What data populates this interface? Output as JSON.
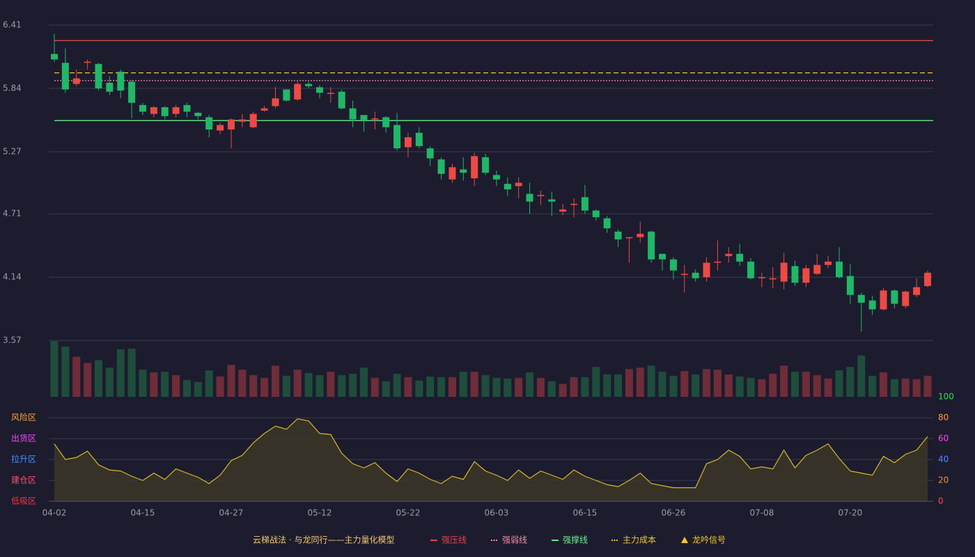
{
  "chart_data": {
    "type": "candlestick",
    "categories": [
      "04-02",
      null,
      null,
      null,
      null,
      null,
      null,
      null,
      "04-15",
      null,
      null,
      null,
      null,
      null,
      null,
      null,
      "04-27",
      null,
      null,
      null,
      null,
      null,
      null,
      null,
      "05-12",
      null,
      null,
      null,
      null,
      null,
      null,
      null,
      "05-22",
      null,
      null,
      null,
      null,
      null,
      null,
      null,
      "06-03",
      null,
      null,
      null,
      null,
      null,
      null,
      null,
      "06-15",
      null,
      null,
      null,
      null,
      null,
      null,
      null,
      "06-26",
      null,
      null,
      null,
      null,
      null,
      null,
      null,
      "07-08",
      null,
      null,
      null,
      null,
      null,
      null,
      null,
      "07-20",
      null,
      null,
      null,
      null,
      null,
      null,
      null
    ],
    "open": [
      6.15,
      6.07,
      5.88,
      6.07,
      6.06,
      5.89,
      5.99,
      5.9,
      5.69,
      5.61,
      5.67,
      5.61,
      5.69,
      5.62,
      5.58,
      5.46,
      5.47,
      5.54,
      5.49,
      5.64,
      5.68,
      5.83,
      5.74,
      5.88,
      5.85,
      5.79,
      5.81,
      5.66,
      5.6,
      5.56,
      5.58,
      5.51,
      5.31,
      5.44,
      5.3,
      5.2,
      5.02,
      5.11,
      5.03,
      5.22,
      5.06,
      4.98,
      4.96,
      4.89,
      4.87,
      4.84,
      4.73,
      4.79,
      4.86,
      4.74,
      4.67,
      4.55,
      4.49,
      4.5,
      4.55,
      4.35,
      4.3,
      4.16,
      4.18,
      4.14,
      4.27,
      4.33,
      4.35,
      4.28,
      4.13,
      4.12,
      4.1,
      4.24,
      4.09,
      4.17,
      4.25,
      4.28,
      4.15,
      3.98,
      3.93,
      3.85,
      4.02,
      3.88,
      3.98,
      4.06
    ],
    "high": [
      6.33,
      6.2,
      6.01,
      6.1,
      6.07,
      5.95,
      6.01,
      5.91,
      5.71,
      5.68,
      5.68,
      5.69,
      5.71,
      5.63,
      5.6,
      5.53,
      5.57,
      5.61,
      5.63,
      5.68,
      5.85,
      5.83,
      5.9,
      5.9,
      5.87,
      5.85,
      5.83,
      5.73,
      5.6,
      5.63,
      5.59,
      5.62,
      5.44,
      5.49,
      5.32,
      5.22,
      5.16,
      5.22,
      5.26,
      5.25,
      5.1,
      5.04,
      5.04,
      4.99,
      4.92,
      4.91,
      4.8,
      4.85,
      4.97,
      4.75,
      4.69,
      4.57,
      4.5,
      4.64,
      4.56,
      4.35,
      4.32,
      4.25,
      4.21,
      4.32,
      4.47,
      4.41,
      4.44,
      4.31,
      4.18,
      4.23,
      4.36,
      4.29,
      4.25,
      4.35,
      4.33,
      4.41,
      4.26,
      4.0,
      3.97,
      4.04,
      4.03,
      4.02,
      4.13,
      4.2
    ],
    "low": [
      6.08,
      5.8,
      5.86,
      6.01,
      5.82,
      5.78,
      5.75,
      5.57,
      5.6,
      5.58,
      5.56,
      5.58,
      5.58,
      5.56,
      5.4,
      5.43,
      5.3,
      5.49,
      5.48,
      5.63,
      5.66,
      5.72,
      5.73,
      5.84,
      5.75,
      5.71,
      5.65,
      5.49,
      5.45,
      5.47,
      5.44,
      5.28,
      5.22,
      5.3,
      5.14,
      5.02,
      4.99,
      5.01,
      4.96,
      5.06,
      4.96,
      4.87,
      4.85,
      4.71,
      4.79,
      4.69,
      4.7,
      4.68,
      4.71,
      4.65,
      4.54,
      4.41,
      4.27,
      4.45,
      4.27,
      4.2,
      4.12,
      4.0,
      4.1,
      4.1,
      4.2,
      4.27,
      4.24,
      4.12,
      4.05,
      4.04,
      4.03,
      4.06,
      4.05,
      4.16,
      4.22,
      4.13,
      3.9,
      3.65,
      3.8,
      3.84,
      3.86,
      3.86,
      3.96,
      4.05
    ],
    "close": [
      6.1,
      5.83,
      5.93,
      6.08,
      5.84,
      5.81,
      5.82,
      5.71,
      5.63,
      5.67,
      5.59,
      5.67,
      5.63,
      5.59,
      5.47,
      5.51,
      5.56,
      5.56,
      5.61,
      5.66,
      5.75,
      5.73,
      5.88,
      5.86,
      5.8,
      5.8,
      5.66,
      5.56,
      5.55,
      5.57,
      5.49,
      5.3,
      5.4,
      5.32,
      5.21,
      5.07,
      5.13,
      5.08,
      5.23,
      5.08,
      5.02,
      4.93,
      4.99,
      4.82,
      4.88,
      4.82,
      4.75,
      4.8,
      4.74,
      4.68,
      4.58,
      4.48,
      4.5,
      4.53,
      4.3,
      4.3,
      4.2,
      4.17,
      4.13,
      4.27,
      4.28,
      4.35,
      4.28,
      4.13,
      4.14,
      4.13,
      4.27,
      4.09,
      4.22,
      4.25,
      4.28,
      4.14,
      3.98,
      3.91,
      3.85,
      4.02,
      3.9,
      4.01,
      4.05,
      4.18
    ],
    "volume": [
      82,
      74,
      59,
      50,
      54,
      43,
      70,
      71,
      40,
      36,
      37,
      32,
      25,
      22,
      39,
      30,
      47,
      40,
      32,
      28,
      46,
      31,
      40,
      35,
      32,
      37,
      32,
      34,
      43,
      28,
      23,
      34,
      29,
      24,
      30,
      29,
      29,
      37,
      37,
      32,
      28,
      27,
      28,
      36,
      28,
      23,
      19,
      29,
      29,
      44,
      33,
      33,
      41,
      43,
      46,
      37,
      31,
      38,
      33,
      41,
      40,
      33,
      30,
      28,
      26,
      34,
      46,
      37,
      37,
      32,
      27,
      39,
      44,
      61,
      31,
      36,
      26,
      27,
      26,
      31
    ],
    "ylim": [
      3.57,
      6.41
    ],
    "yticks": [
      3.57,
      4.14,
      4.71,
      5.27,
      5.84,
      6.41
    ],
    "grid": true,
    "up_color": "#ec4a45",
    "down_color": "#21b768",
    "levels": [
      {
        "name": "强压线",
        "value": 6.27,
        "color": "#e0454a",
        "style": "solid"
      },
      {
        "name": "强弱线",
        "value": 5.91,
        "color": "#f08aa8",
        "style": "dotted"
      },
      {
        "name": "强撑线",
        "value": 5.55,
        "color": "#66ee88",
        "style": "solid"
      },
      {
        "name": "主力成本",
        "value": 5.98,
        "color": "#f5c72e",
        "style": "dashed"
      }
    ],
    "legend_title": "云梯战法 · 与龙同行——主力量化模型",
    "signal": {
      "name": "龙吟信号",
      "color": "#f5c72e"
    },
    "indicator": {
      "values": [
        55,
        40,
        42,
        48,
        35,
        30,
        29,
        24,
        20,
        27,
        21,
        31,
        27,
        23,
        17,
        25,
        39,
        44,
        56,
        65,
        72,
        69,
        79,
        77,
        65,
        64,
        46,
        36,
        32,
        37,
        27,
        19,
        31,
        27,
        21,
        17,
        24,
        21,
        38,
        29,
        25,
        20,
        30,
        22,
        29,
        25,
        21,
        30,
        24,
        20,
        16,
        14,
        20,
        27,
        17,
        15,
        13,
        13,
        13,
        36,
        40,
        49,
        43,
        31,
        33,
        31,
        49,
        32,
        44,
        49,
        55,
        41,
        29,
        27,
        25,
        43,
        37,
        45,
        49,
        62
      ],
      "color": "#d9b92c",
      "ylim": [
        0,
        100
      ],
      "yticks": [
        0,
        20,
        40,
        60,
        80,
        100
      ],
      "ytick_colors": [
        "#ff4d4d",
        "#ff8a30",
        "#4d8dff",
        "#ff44ff",
        "#ffa030",
        "#33dd55"
      ],
      "zones": [
        {
          "value": 80,
          "label": "风险区",
          "color": "#ffa030"
        },
        {
          "value": 60,
          "label": "出货区",
          "color": "#ff44ff"
        },
        {
          "value": 40,
          "label": "拉升区",
          "color": "#4d8dff"
        },
        {
          "value": 20,
          "label": "建仓区",
          "color": "#ff4d6a"
        },
        {
          "value": 0,
          "label": "低吸区",
          "color": "#ff3040"
        }
      ]
    }
  }
}
